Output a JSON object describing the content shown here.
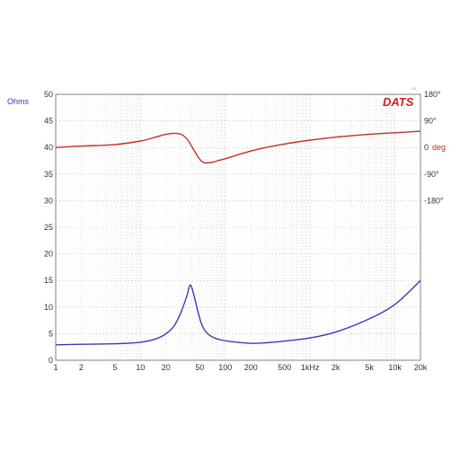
{
  "logo": {
    "text": "DATS",
    "superscript": "V3"
  },
  "chart_data": {
    "type": "line",
    "x_scale": "log",
    "xlim": [
      1,
      20000
    ],
    "x_ticks": [
      {
        "value": 1,
        "label": "1"
      },
      {
        "value": 2,
        "label": "2"
      },
      {
        "value": 5,
        "label": "5"
      },
      {
        "value": 10,
        "label": "10"
      },
      {
        "value": 20,
        "label": "20"
      },
      {
        "value": 50,
        "label": "50"
      },
      {
        "value": 100,
        "label": "100"
      },
      {
        "value": 200,
        "label": "200"
      },
      {
        "value": 500,
        "label": "500"
      },
      {
        "value": 1000,
        "label": "1kHz"
      },
      {
        "value": 2000,
        "label": "2k"
      },
      {
        "value": 5000,
        "label": "5k"
      },
      {
        "value": 10000,
        "label": "10k"
      },
      {
        "value": 20000,
        "label": "20k"
      }
    ],
    "y_left": {
      "label": "Ohms",
      "range": [
        0,
        50
      ],
      "ticks": [
        0,
        5,
        10,
        15,
        20,
        25,
        30,
        35,
        40,
        45,
        50
      ]
    },
    "y_right": {
      "label": "deg",
      "range": [
        -720,
        180
      ],
      "ticks": [
        {
          "value": 180,
          "label": "180°"
        },
        {
          "value": 90,
          "label": "90°"
        },
        {
          "value": 0,
          "label": "0"
        },
        {
          "value": -90,
          "label": "-90°"
        },
        {
          "value": -180,
          "label": "-180°"
        }
      ]
    },
    "grid": true,
    "series": [
      {
        "name": "",
        "axis": "left",
        "color": "#3b3bb8",
        "points": [
          [
            1,
            2.9
          ],
          [
            2,
            3.0
          ],
          [
            5,
            3.1
          ],
          [
            10,
            3.4
          ],
          [
            15,
            4.0
          ],
          [
            20,
            5.0
          ],
          [
            25,
            6.5
          ],
          [
            30,
            9.0
          ],
          [
            35,
            12.0
          ],
          [
            38,
            14.0
          ],
          [
            40,
            13.8
          ],
          [
            43,
            12.0
          ],
          [
            47,
            9.5
          ],
          [
            52,
            7.0
          ],
          [
            58,
            5.5
          ],
          [
            70,
            4.4
          ],
          [
            90,
            3.8
          ],
          [
            120,
            3.5
          ],
          [
            200,
            3.2
          ],
          [
            300,
            3.3
          ],
          [
            500,
            3.6
          ],
          [
            1000,
            4.2
          ],
          [
            2000,
            5.3
          ],
          [
            5000,
            7.8
          ],
          [
            10000,
            10.5
          ],
          [
            20000,
            15.0
          ]
        ]
      },
      {
        "name": "",
        "axis": "right",
        "color": "#c23030",
        "points": [
          [
            1,
            0
          ],
          [
            2,
            5
          ],
          [
            5,
            10
          ],
          [
            10,
            22
          ],
          [
            15,
            35
          ],
          [
            20,
            45
          ],
          [
            25,
            48
          ],
          [
            30,
            45
          ],
          [
            35,
            30
          ],
          [
            40,
            5
          ],
          [
            45,
            -20
          ],
          [
            50,
            -40
          ],
          [
            55,
            -50
          ],
          [
            60,
            -52
          ],
          [
            70,
            -50
          ],
          [
            80,
            -45
          ],
          [
            100,
            -38
          ],
          [
            150,
            -22
          ],
          [
            200,
            -12
          ],
          [
            300,
            0
          ],
          [
            500,
            12
          ],
          [
            1000,
            25
          ],
          [
            2000,
            35
          ],
          [
            5000,
            45
          ],
          [
            10000,
            50
          ],
          [
            20000,
            55
          ]
        ]
      }
    ]
  }
}
